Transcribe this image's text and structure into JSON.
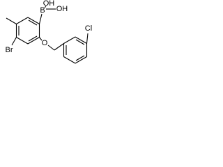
{
  "atoms": {
    "boron": "B",
    "hydroxyl_top": "OH",
    "hydroxyl_right": "OH",
    "bromine": "Br",
    "oxygen": "O",
    "chlorine": "Cl"
  }
}
